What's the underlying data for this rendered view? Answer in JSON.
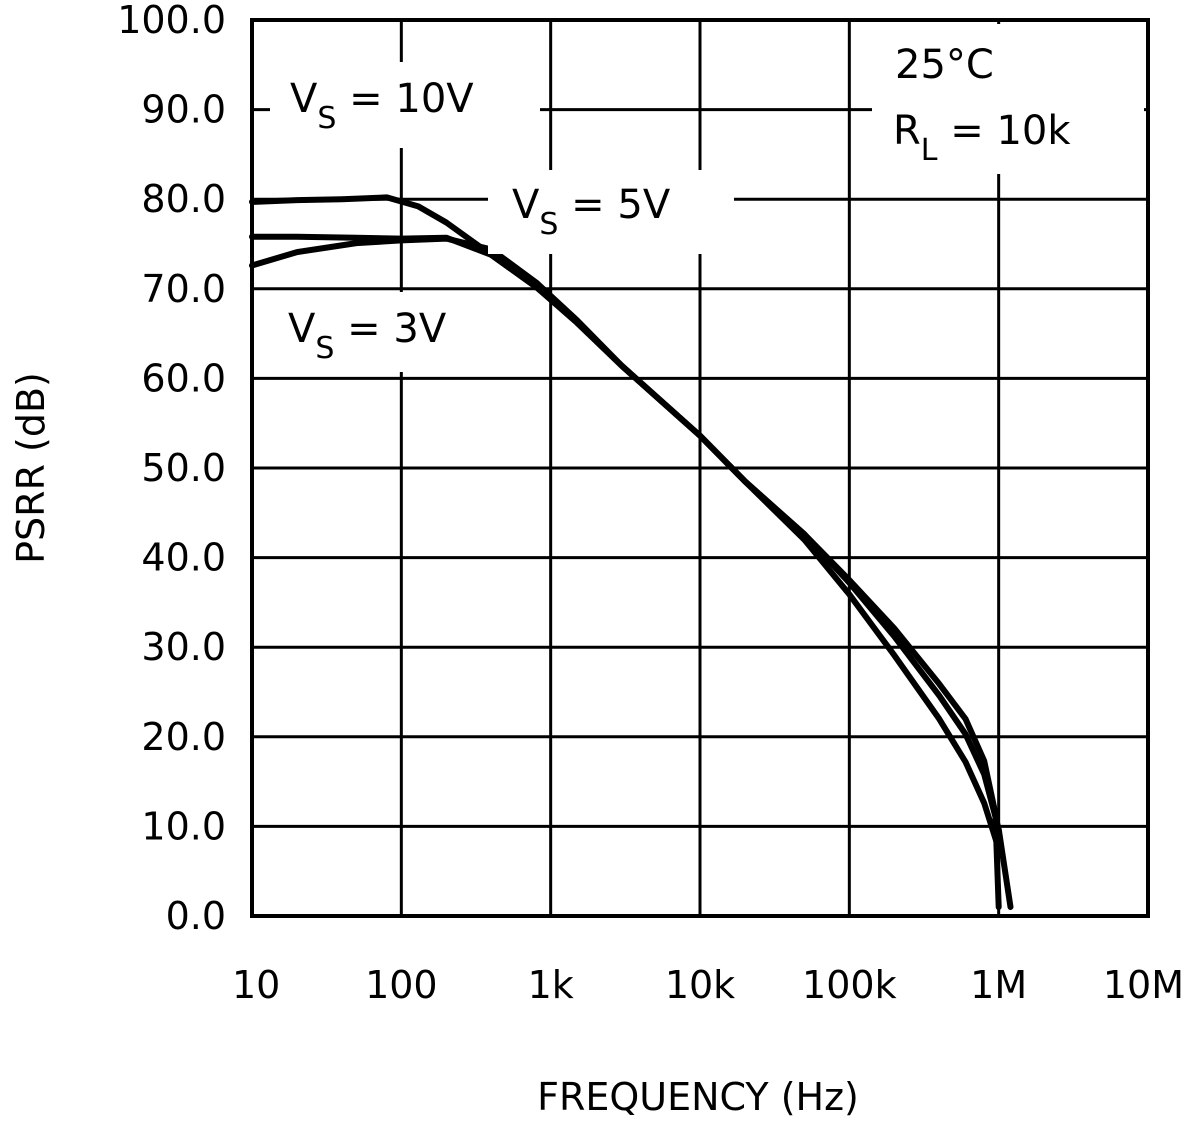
{
  "chart_data": {
    "type": "line",
    "xscale": "log",
    "xlim": [
      10,
      10000000
    ],
    "ylim": [
      0,
      100
    ],
    "xlabel": "FREQUENCY (Hz)",
    "ylabel": "PSRR (dB)",
    "grid": true,
    "x_ticks": [
      10,
      100,
      1000,
      10000,
      100000,
      1000000,
      10000000
    ],
    "x_tick_labels": [
      "10",
      "100",
      "1k",
      "10k",
      "100k",
      "1M",
      "10M"
    ],
    "y_ticks": [
      0,
      10,
      20,
      30,
      40,
      50,
      60,
      70,
      80,
      90,
      100
    ],
    "y_tick_labels": [
      "0.0",
      "10.0",
      "20.0",
      "30.0",
      "40.0",
      "50.0",
      "60.0",
      "70.0",
      "80.0",
      "90.0",
      "100.0"
    ],
    "annotations": {
      "temperature": "25°C",
      "rl_main": "R",
      "rl_sub": "L",
      "rl_value": " =  10k",
      "vs10_main": "V",
      "vs10_sub": "S",
      "vs10_value": " =  10V",
      "vs5_main": "V",
      "vs5_sub": "S",
      "vs5_value": " =  5V",
      "vs3_main": "V",
      "vs3_sub": "S",
      "vs3_value": " =  3V"
    },
    "series": [
      {
        "x": [
          10,
          20,
          40,
          80,
          130,
          200,
          400,
          800,
          1500,
          3000,
          10000,
          20000,
          50000,
          100000,
          200000,
          400000,
          600000,
          800000,
          1000000
        ],
        "y": [
          79.7,
          79.9,
          80.0,
          80.2,
          79.2,
          77.4,
          73.8,
          70.2,
          66.2,
          61.4,
          53.6,
          48.5,
          42.0,
          35.9,
          29.1,
          22.0,
          17.2,
          12.6,
          7.5
        ]
      },
      {
        "x": [
          10,
          20,
          50,
          100,
          200,
          400,
          800,
          1500,
          3000,
          10000,
          20000,
          50000,
          100000,
          200000,
          400000,
          600000,
          800000,
          1000000,
          1200000
        ],
        "y": [
          75.8,
          75.8,
          75.7,
          75.6,
          75.7,
          73.8,
          70.2,
          66.3,
          61.4,
          53.6,
          48.5,
          42.6,
          37.2,
          31.2,
          24.6,
          20.3,
          15.8,
          9.7,
          1.0
        ]
      },
      {
        "x": [
          10,
          20,
          50,
          100,
          200,
          400,
          800,
          1500,
          3000,
          10000,
          20000,
          50000,
          100000,
          200000,
          400000,
          600000,
          800000,
          950000,
          1000000
        ],
        "y": [
          72.6,
          74.1,
          75.1,
          75.4,
          75.6,
          74.4,
          70.7,
          66.5,
          61.4,
          53.6,
          48.5,
          42.6,
          37.5,
          32.1,
          25.9,
          22.0,
          17.3,
          11.5,
          1.0
        ]
      }
    ]
  }
}
